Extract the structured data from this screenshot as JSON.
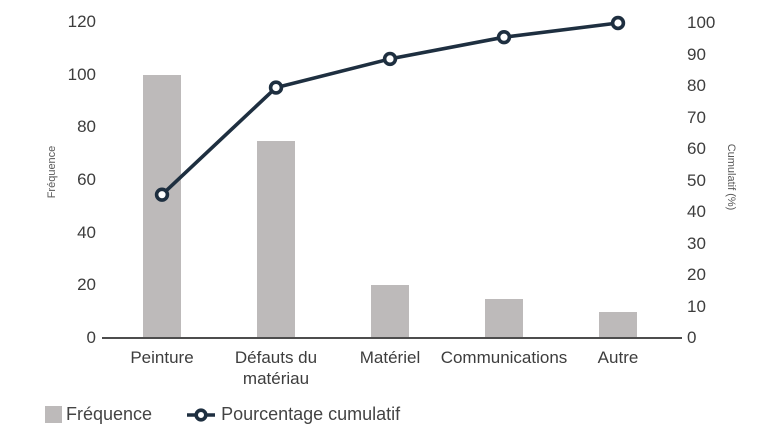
{
  "chart_data": {
    "type": "bar",
    "subtype": "pareto-bar-line-combo",
    "categories": [
      "Peinture",
      "Défauts du matériau",
      "Matériel",
      "Communications",
      "Autre"
    ],
    "series": [
      {
        "name": "Fréquence",
        "type": "bar",
        "axis": "left",
        "values": [
          100,
          75,
          20,
          15,
          10
        ]
      },
      {
        "name": "Pourcentage cumulatif",
        "type": "line",
        "axis": "right",
        "values": [
          45.5,
          79.5,
          88.6,
          95.5,
          100
        ]
      }
    ],
    "title": "",
    "xlabel": "",
    "left_axis": {
      "label": "Fréquence",
      "min": 0,
      "max": 120,
      "tick_step": 20,
      "ticks": [
        0,
        20,
        40,
        60,
        80,
        100,
        120
      ]
    },
    "right_axis": {
      "label": "Cumulatif (%)",
      "min": 0,
      "max": 100,
      "tick_step": 10,
      "ticks": [
        0,
        10,
        20,
        30,
        40,
        50,
        60,
        70,
        80,
        90,
        100
      ]
    },
    "grid": false,
    "legend_position": "bottom-left"
  },
  "legend": {
    "items": [
      {
        "label": "Fréquence",
        "marker": "bar-swatch"
      },
      {
        "label": "Pourcentage cumulatif",
        "marker": "line-circle"
      }
    ]
  },
  "colors": {
    "bar": "#bdbaba",
    "line": "#1e2f40",
    "marker_fill": "#ffffff",
    "axis_line": "#4d4d4d",
    "tick_text": "#3d3d3d",
    "axis_title_text": "#595959",
    "background": "#ffffff"
  }
}
